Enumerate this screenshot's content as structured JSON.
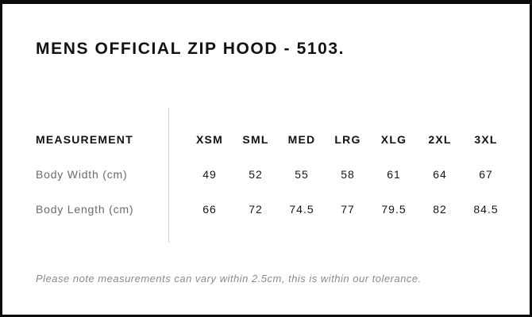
{
  "page": {
    "title": "MENS OFFICIAL ZIP HOOD - 5103."
  },
  "size_chart": {
    "measurement_header": "MEASUREMENT",
    "sizes": [
      "XSM",
      "SML",
      "MED",
      "LRG",
      "XLG",
      "2XL",
      "3XL"
    ],
    "rows": [
      {
        "label": "Body Width (cm)",
        "values": [
          "49",
          "52",
          "55",
          "58",
          "61",
          "64",
          "67"
        ]
      },
      {
        "label": "Body Length (cm)",
        "values": [
          "66",
          "72",
          "74.5",
          "77",
          "79.5",
          "82",
          "84.5"
        ]
      }
    ]
  },
  "footer": {
    "note": "Please note measurements can vary within 2.5cm, this is within our tolerance."
  },
  "colors": {
    "frame_border": "#0b0b0b",
    "title_text": "#111111",
    "label_gray": "#6b6b6b",
    "value_text": "#161616",
    "note_gray": "#8a8a8a",
    "divider_gray": "#cccccc",
    "background": "#ffffff"
  },
  "chart_data": {
    "type": "table",
    "title": "MENS OFFICIAL ZIP HOOD - 5103.",
    "columns": [
      "MEASUREMENT",
      "XSM",
      "SML",
      "MED",
      "LRG",
      "XLG",
      "2XL",
      "3XL"
    ],
    "rows": [
      [
        "Body Width (cm)",
        49,
        52,
        55,
        58,
        61,
        64,
        67
      ],
      [
        "Body Length (cm)",
        66,
        72,
        74.5,
        77,
        79.5,
        82,
        84.5
      ]
    ],
    "note": "Please note measurements can vary within 2.5cm, this is within our tolerance.",
    "layout": {
      "divider_between_label_and_data": true,
      "grid": "off"
    }
  }
}
